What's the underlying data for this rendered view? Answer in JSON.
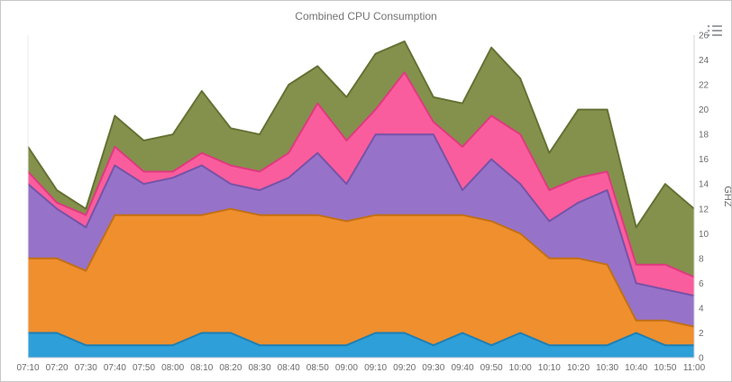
{
  "header": {
    "title": "Combined CPU Consumption"
  },
  "chart_data": {
    "type": "area",
    "stacked": true,
    "title": "Combined CPU Consumption",
    "xlabel": "",
    "ylabel": "GHZ",
    "ylim": [
      0,
      26
    ],
    "yticks": [
      0,
      2,
      4,
      6,
      8,
      10,
      12,
      14,
      16,
      18,
      20,
      22,
      24,
      26
    ],
    "grid": false,
    "legend_position": "none",
    "value_axis_side": "right",
    "categories": [
      "07:10",
      "07:20",
      "07:30",
      "07:40",
      "07:50",
      "08:00",
      "08:10",
      "08:20",
      "08:30",
      "08:40",
      "08:50",
      "09:00",
      "09:10",
      "09:20",
      "09:30",
      "09:40",
      "09:50",
      "10:00",
      "10:10",
      "10:20",
      "10:30",
      "10:40",
      "10:50",
      "11:00"
    ],
    "series": [
      {
        "name": "blue-series",
        "fill": "#2e9fd8",
        "stroke": "#1d7fb5",
        "values": [
          2,
          2,
          1,
          1,
          1,
          1,
          2,
          2,
          1,
          1,
          1,
          1,
          2,
          2,
          1,
          2,
          1,
          2,
          1,
          1,
          1,
          2,
          1,
          1
        ]
      },
      {
        "name": "orange-series",
        "fill": "#ef8f2e",
        "stroke": "#c26f15",
        "values": [
          6,
          6,
          6,
          10.5,
          10.5,
          10.5,
          9.5,
          10,
          10.5,
          10.5,
          10.5,
          10,
          9.5,
          9.5,
          10.5,
          9.5,
          10,
          8,
          7,
          7,
          6.5,
          1,
          2,
          1.5
        ]
      },
      {
        "name": "purple-series",
        "fill": "#9673c9",
        "stroke": "#7553a8",
        "values": [
          6,
          4,
          3.5,
          4,
          2.5,
          3,
          4,
          2,
          2,
          3,
          5,
          3,
          6.5,
          6.5,
          6.5,
          2,
          5,
          4,
          3,
          4.5,
          6,
          3,
          2.5,
          2.5
        ]
      },
      {
        "name": "pink-series",
        "fill": "#fa5d9d",
        "stroke": "#de3a7f",
        "values": [
          1,
          0.5,
          1,
          1.5,
          1,
          0.5,
          1,
          1.5,
          1.5,
          2,
          4,
          3.5,
          2,
          5,
          1,
          3.5,
          3.5,
          4,
          2.5,
          2,
          1.5,
          1.5,
          2,
          1.5
        ]
      },
      {
        "name": "olive-series",
        "fill": "#84914c",
        "stroke": "#647133",
        "values": [
          2,
          1,
          0.5,
          2.5,
          2.5,
          3,
          5,
          3,
          3,
          5.5,
          3,
          3.5,
          4.5,
          2.5,
          2,
          3.5,
          5.5,
          4.5,
          3,
          5.5,
          5,
          3,
          6.5,
          5.5
        ]
      }
    ],
    "colors": {
      "axis_line": "#d3d3d3",
      "left_border": "#ebebeb",
      "axis_label": "#6b6b6b",
      "title_text": "#747474",
      "menu_icon": "#9da0a5"
    }
  }
}
